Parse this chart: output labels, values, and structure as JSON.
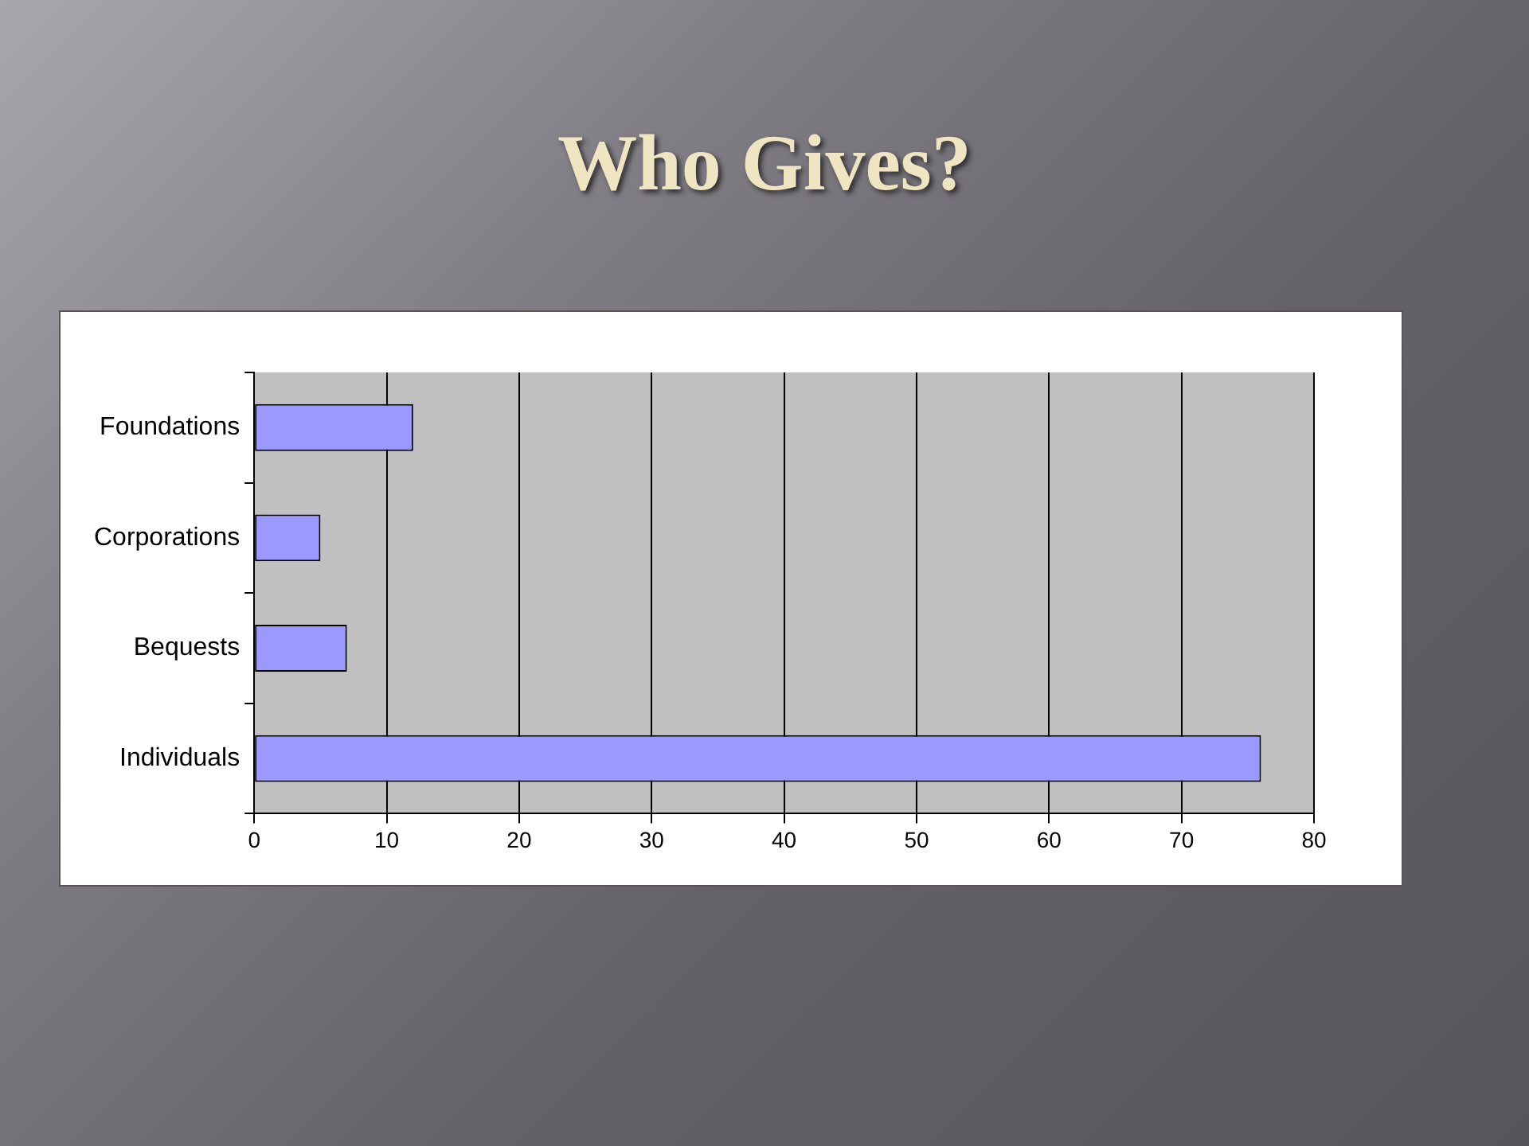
{
  "chart_data": {
    "type": "bar",
    "title": "Who Gives?",
    "orientation": "horizontal",
    "categories": [
      "Foundations",
      "Corporations",
      "Bequests",
      "Individuals"
    ],
    "values": [
      12,
      5,
      7,
      76
    ],
    "color": "#9999ff",
    "xlim": [
      0,
      80
    ],
    "xticks": [
      0,
      10,
      20,
      30,
      40,
      50,
      60,
      70,
      80
    ],
    "grid": "x"
  }
}
